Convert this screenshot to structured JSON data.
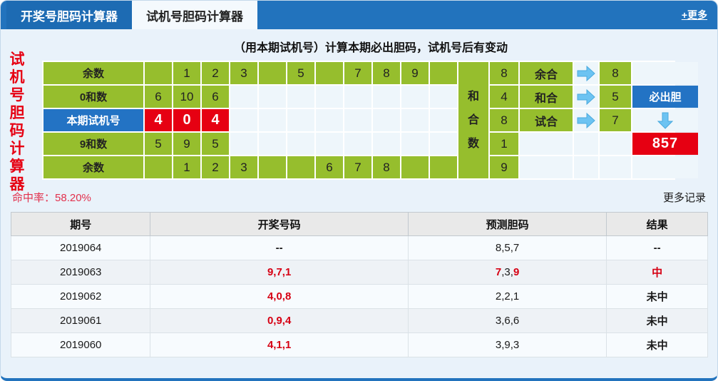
{
  "tabs": {
    "tab1": "开奖号胆码计算器",
    "tab2": "试机号胆码计算器",
    "more": "+更多"
  },
  "sidebar_title": "试机号胆码计算器",
  "calc": {
    "title": "（用本期试机号）计算本期必出胆码，试机号后有变动",
    "middle_label": "和合数",
    "rows": [
      {
        "label": "余数",
        "label_style": "green",
        "cells": [
          {
            "t": ""
          },
          {
            "t": "1"
          },
          {
            "t": "2"
          },
          {
            "t": "3"
          },
          {
            "t": ""
          },
          {
            "t": "5"
          },
          {
            "t": ""
          },
          {
            "t": "7"
          },
          {
            "t": "8"
          },
          {
            "t": "9"
          },
          {
            "t": ""
          }
        ],
        "sum": "8",
        "combo_label": "余合",
        "has_arrow": true,
        "result": "8",
        "extra": {
          "type": "none"
        }
      },
      {
        "label": "0和数",
        "label_style": "green",
        "cells": [
          {
            "t": "6"
          },
          {
            "t": "10"
          },
          {
            "t": "6"
          },
          null,
          null,
          null,
          null,
          null,
          null,
          null,
          null
        ],
        "sum": "4",
        "combo_label": "和合",
        "has_arrow": true,
        "result": "5",
        "extra": {
          "type": "button",
          "text": "必出胆"
        }
      },
      {
        "label": "本期试机号",
        "label_style": "blue",
        "cells": [
          {
            "t": "4",
            "bg": "red"
          },
          {
            "t": "0",
            "bg": "red"
          },
          {
            "t": "4",
            "bg": "red"
          },
          null,
          null,
          null,
          null,
          null,
          null,
          null,
          null
        ],
        "sum": "8",
        "combo_label": "试合",
        "has_arrow": true,
        "result": "7",
        "extra": {
          "type": "down"
        }
      },
      {
        "label": "9和数",
        "label_style": "green",
        "cells": [
          {
            "t": "5"
          },
          {
            "t": "9"
          },
          {
            "t": "5"
          },
          null,
          null,
          null,
          null,
          null,
          null,
          null,
          null
        ],
        "sum": "1",
        "combo_label": null,
        "has_arrow": false,
        "result": null,
        "extra": {
          "type": "result",
          "text": "857"
        }
      },
      {
        "label": "余数",
        "label_style": "green",
        "cells": [
          {
            "t": ""
          },
          {
            "t": "1"
          },
          {
            "t": "2"
          },
          {
            "t": "3"
          },
          {
            "t": ""
          },
          {
            "t": ""
          },
          {
            "t": "6"
          },
          {
            "t": "7"
          },
          {
            "t": "8"
          },
          {
            "t": ""
          },
          {
            "t": ""
          }
        ],
        "sum": "9",
        "combo_label": null,
        "has_arrow": false,
        "result": null,
        "extra": {
          "type": "none"
        }
      }
    ]
  },
  "hit_rate": {
    "label": "命中率：",
    "value": "58.20%"
  },
  "more_records": "更多记录",
  "table": {
    "headers": [
      "期号",
      "开奖号码",
      "预测胆码",
      "结果"
    ],
    "records": [
      {
        "period": "2019064",
        "draw": [
          {
            "t": "--"
          }
        ],
        "pred": [
          {
            "t": "8,5,7"
          }
        ],
        "result": [
          {
            "t": "--"
          }
        ]
      },
      {
        "period": "2019063",
        "draw": [
          {
            "t": "9,7,1",
            "red": true
          }
        ],
        "pred": [
          {
            "t": "7",
            "red": true
          },
          {
            "t": ",3,"
          },
          {
            "t": "9",
            "red": true
          }
        ],
        "result": [
          {
            "t": "中",
            "red": true
          }
        ]
      },
      {
        "period": "2019062",
        "draw": [
          {
            "t": "4,0,8",
            "red": true
          }
        ],
        "pred": [
          {
            "t": "2,2,1"
          }
        ],
        "result": [
          {
            "t": "未中"
          }
        ]
      },
      {
        "period": "2019061",
        "draw": [
          {
            "t": "0,9,4",
            "red": true
          }
        ],
        "pred": [
          {
            "t": "3,6,6"
          }
        ],
        "result": [
          {
            "t": "未中"
          }
        ]
      },
      {
        "period": "2019060",
        "draw": [
          {
            "t": "4,1,1",
            "red": true
          }
        ],
        "pred": [
          {
            "t": "3,9,3"
          }
        ],
        "result": [
          {
            "t": "未中"
          }
        ]
      }
    ]
  },
  "colors": {
    "bar_blue": "#2273bd",
    "tab_blue": "#1d6bb3",
    "accent_blue": "#2373c4",
    "cell_green": "#96be2d",
    "cell_red": "#e60012",
    "arrow_blue": "#6cc3f2",
    "hit_red": "#e2304c",
    "page_bg": "#e9f2fa"
  }
}
